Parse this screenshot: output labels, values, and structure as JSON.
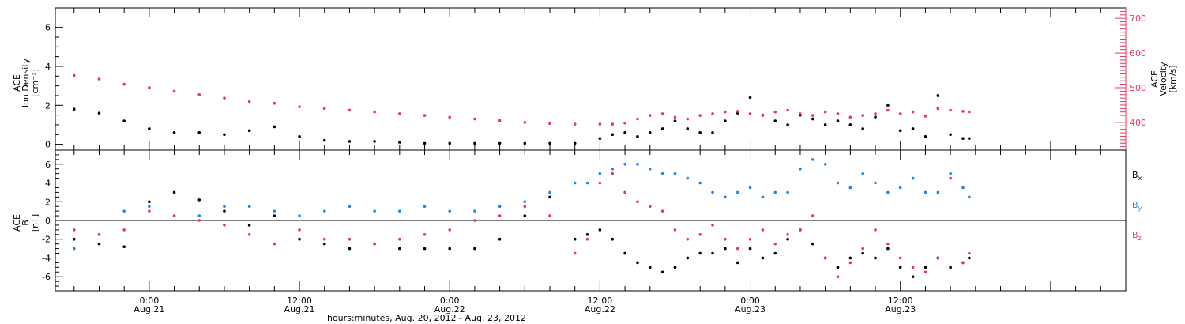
{
  "chart_data": [
    {
      "type": "scatter",
      "panel": "top",
      "ylabel_left_lines": [
        "ACE",
        "Ion Density"
      ],
      "ylabel_left_unit": "[cm⁻³]",
      "ylabel_right_lines": [
        "ACE",
        "Velocity"
      ],
      "ylabel_right_unit": "[km/s]",
      "left_ticks": [
        0,
        2,
        4,
        6
      ],
      "right_ticks": [
        400,
        500,
        600,
        700
      ],
      "left_ylim": [
        -0.3,
        7.0
      ],
      "right_ylim": [
        320,
        730
      ],
      "right_axis_color": "#e8375f",
      "series": [
        {
          "axis": "left",
          "color": "#000000",
          "x": [
            -6,
            -4,
            -2,
            0,
            2,
            4,
            6,
            8,
            10,
            12,
            14,
            16,
            18,
            20,
            22,
            24,
            26,
            28,
            30,
            32,
            34,
            36,
            37,
            38,
            39,
            40,
            41,
            42,
            43,
            44,
            45,
            46,
            47,
            48,
            49,
            50,
            51,
            52,
            53,
            54,
            55,
            56,
            57,
            58,
            59,
            60,
            61,
            62,
            63,
            64,
            65,
            65.5
          ],
          "y": [
            1.8,
            1.6,
            1.2,
            0.8,
            0.6,
            0.6,
            0.5,
            0.7,
            0.9,
            0.4,
            0.2,
            0.15,
            0.15,
            0.1,
            0.05,
            0.05,
            0.05,
            0.05,
            0.05,
            0.05,
            0.05,
            0.3,
            0.5,
            0.6,
            0.4,
            0.6,
            0.8,
            1.2,
            0.8,
            0.6,
            0.6,
            1.2,
            1.6,
            2.4,
            1.5,
            1.2,
            1.0,
            1.5,
            1.3,
            1.0,
            1.2,
            1.0,
            0.8,
            1.4,
            2.0,
            0.7,
            0.8,
            0.4,
            2.5,
            0.5,
            0.3,
            0.3
          ]
        },
        {
          "axis": "right",
          "color": "#e8375f",
          "x": [
            -6,
            -4,
            -2,
            0,
            2,
            4,
            6,
            8,
            10,
            12,
            14,
            16,
            18,
            20,
            22,
            24,
            26,
            28,
            30,
            32,
            34,
            36,
            37,
            38,
            39,
            40,
            41,
            42,
            43,
            44,
            45,
            46,
            47,
            48,
            49,
            50,
            51,
            52,
            53,
            54,
            55,
            56,
            57,
            58,
            59,
            60,
            61,
            62,
            63,
            64,
            65,
            65.5
          ],
          "y": [
            535,
            525,
            510,
            500,
            490,
            480,
            470,
            460,
            455,
            445,
            440,
            435,
            430,
            425,
            420,
            415,
            410,
            405,
            400,
            397,
            395,
            395,
            395,
            398,
            410,
            420,
            425,
            415,
            410,
            420,
            425,
            430,
            432,
            425,
            420,
            430,
            435,
            425,
            420,
            430,
            425,
            415,
            420,
            425,
            435,
            425,
            430,
            418,
            440,
            435,
            432,
            430
          ]
        }
      ]
    },
    {
      "type": "scatter",
      "panel": "bottom",
      "ylabel_lines": [
        "ACE",
        "B"
      ],
      "ylabel_unit": "[nT]",
      "ticks": [
        -6,
        -4,
        -2,
        0,
        2,
        4,
        6
      ],
      "ylim": [
        -7.5,
        7.5
      ],
      "series": [
        {
          "name": "Bx",
          "name_base": "B",
          "name_sub": "x",
          "color": "#000000",
          "x": [
            -6,
            -4,
            -2,
            0,
            2,
            4,
            6,
            8,
            10,
            12,
            14,
            16,
            18,
            20,
            22,
            24,
            26,
            28,
            30,
            32,
            34,
            35,
            36,
            37,
            38,
            39,
            40,
            41,
            42,
            43,
            44,
            45,
            46,
            47,
            48,
            49,
            50,
            51,
            52,
            53,
            54,
            55,
            56,
            57,
            58,
            59,
            60,
            61,
            62,
            63,
            64,
            65,
            65.5
          ],
          "y": [
            -2.0,
            -2.5,
            -2.8,
            2.0,
            3.0,
            2.2,
            1.0,
            -0.5,
            0.5,
            -2.0,
            -2.5,
            -3.0,
            -2.5,
            -3.0,
            -3.0,
            -3.0,
            -3.0,
            -2.0,
            0.5,
            2.5,
            -2.0,
            -1.5,
            -1.0,
            -2.0,
            -3.5,
            -4.5,
            -5.0,
            -5.5,
            -5.0,
            -4.0,
            -3.5,
            -3.5,
            -3.0,
            -4.5,
            -3.0,
            -4.0,
            -3.5,
            -2.0,
            -1.0,
            -2.5,
            -4.0,
            -5.0,
            -4.0,
            -3.5,
            -4.0,
            -3.0,
            -5.0,
            -6.0,
            -5.0,
            -4.0,
            -5.0,
            -4.5,
            -4.0
          ]
        },
        {
          "name": "By",
          "name_base": "B",
          "name_sub": "y",
          "color": "#1e88e5",
          "x": [
            -6,
            -4,
            -2,
            0,
            2,
            4,
            6,
            8,
            10,
            12,
            14,
            16,
            18,
            20,
            22,
            24,
            26,
            28,
            30,
            32,
            34,
            35,
            36,
            37,
            38,
            39,
            40,
            41,
            42,
            43,
            44,
            45,
            46,
            47,
            48,
            49,
            50,
            51,
            52,
            53,
            54,
            55,
            56,
            57,
            58,
            59,
            60,
            61,
            62,
            63,
            64,
            65,
            65.5
          ],
          "y": [
            -3.0,
            -1.5,
            1.0,
            1.5,
            0.5,
            0.5,
            1.5,
            1.5,
            1.0,
            0.5,
            1.0,
            1.5,
            1.0,
            1.0,
            1.5,
            1.0,
            1.0,
            1.5,
            2.0,
            3.0,
            4.0,
            4.0,
            5.0,
            5.5,
            6.0,
            6.0,
            5.5,
            5.0,
            5.0,
            4.5,
            4.0,
            3.0,
            2.5,
            3.0,
            3.5,
            2.5,
            3.0,
            3.0,
            5.5,
            6.5,
            6.0,
            4.0,
            3.5,
            5.0,
            4.0,
            3.0,
            3.5,
            4.5,
            3.0,
            3.0,
            5.0,
            3.5,
            2.5
          ]
        },
        {
          "name": "Bz",
          "name_base": "B",
          "name_sub": "z",
          "color": "#e8375f",
          "x": [
            -6,
            -4,
            -2,
            0,
            2,
            4,
            6,
            8,
            10,
            12,
            14,
            16,
            18,
            20,
            22,
            24,
            26,
            28,
            30,
            32,
            34,
            35,
            36,
            37,
            38,
            39,
            40,
            41,
            42,
            43,
            44,
            45,
            46,
            47,
            48,
            49,
            50,
            51,
            52,
            53,
            54,
            55,
            56,
            57,
            58,
            59,
            60,
            61,
            62,
            63,
            64,
            65,
            65.5
          ],
          "y": [
            -1.0,
            -1.5,
            -1.0,
            1.0,
            0.5,
            0.0,
            -0.5,
            -1.5,
            -2.5,
            -1.0,
            -2.0,
            -2.0,
            -2.5,
            -2.0,
            -1.5,
            -1.0,
            0.0,
            0.5,
            1.5,
            0.5,
            -3.5,
            -2.0,
            4.0,
            5.0,
            3.0,
            2.0,
            1.5,
            1.0,
            -1.0,
            -2.0,
            -1.5,
            -0.5,
            -2.0,
            -3.0,
            -2.0,
            -1.0,
            -2.5,
            -1.5,
            -1.0,
            0.5,
            -4.0,
            -6.0,
            -4.5,
            -3.0,
            -1.0,
            -2.5,
            -4.0,
            -5.0,
            -5.5,
            -4.0,
            4.5,
            -4.5,
            -3.5
          ]
        }
      ]
    }
  ],
  "x_axis": {
    "xlim": [
      -7.5,
      78
    ],
    "ticks": [
      {
        "x": 0,
        "time": "0:00",
        "date": "Aug.21"
      },
      {
        "x": 12,
        "time": "12:00",
        "date": "Aug.21"
      },
      {
        "x": 24,
        "time": "0:00",
        "date": "Aug.22"
      },
      {
        "x": 36,
        "time": "12:00",
        "date": "Aug.22"
      },
      {
        "x": 48,
        "time": "0:00",
        "date": "Aug.23"
      },
      {
        "x": 60,
        "time": "12:00",
        "date": "Aug.23"
      }
    ],
    "title": "hours:minutes, Aug. 20, 2012 - Aug. 23, 2012"
  }
}
